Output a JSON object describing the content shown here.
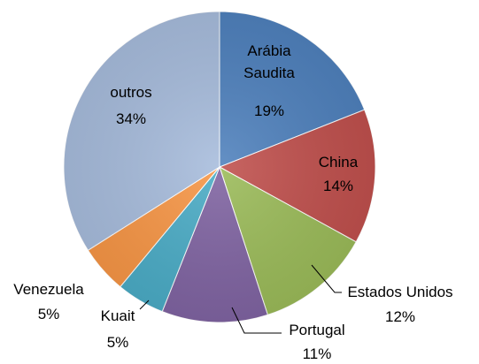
{
  "chart_data": {
    "type": "pie",
    "categories": [
      "Arábia Saudita",
      "China",
      "Estados Unidos",
      "Portugal",
      "Kuait",
      "Venezuela",
      "outros"
    ],
    "values": [
      19,
      14,
      12,
      11,
      5,
      5,
      34
    ],
    "value_labels": [
      "19%",
      "14%",
      "12%",
      "11%",
      "5%",
      "5%",
      "34%"
    ],
    "colors": [
      "#4f81bd",
      "#c0504d",
      "#9bbb59",
      "#8064a2",
      "#4bacc6",
      "#f79646",
      "#a7bcdc"
    ]
  }
}
